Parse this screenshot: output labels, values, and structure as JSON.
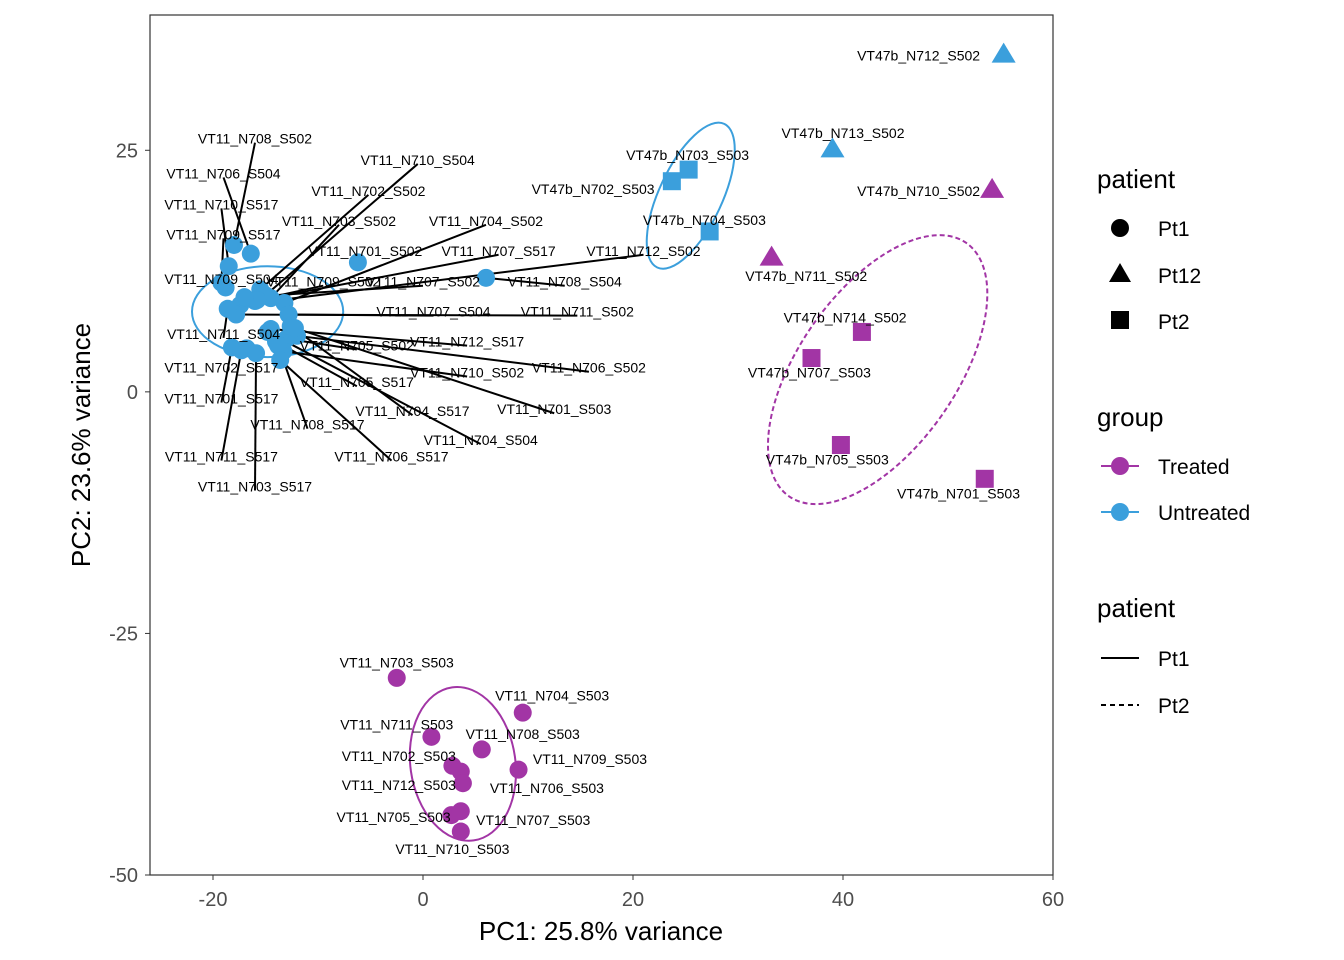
{
  "chart_data": {
    "type": "scatter",
    "xlabel": "PC1: 25.8% variance",
    "ylabel": "PC2: 23.6% variance",
    "xlim": [
      -26,
      60
    ],
    "ylim": [
      -50,
      39
    ],
    "x_ticks": [
      -20,
      0,
      20,
      40,
      60
    ],
    "y_ticks": [
      -50,
      -25,
      0,
      25
    ],
    "grid": false,
    "colors": {
      "Treated": "#a235a5",
      "Untreated": "#3b9fdc"
    },
    "points": [
      {
        "label": "VT11_N708_S502",
        "x": -18.0,
        "y": 15.2,
        "group": "Untreated",
        "patient": "Pt1",
        "lx": -16.0,
        "ly": 26.2
      },
      {
        "label": "VT11_N706_S504",
        "x": -16.4,
        "y": 14.3,
        "group": "Untreated",
        "patient": "Pt1",
        "lx": -19.0,
        "ly": 22.6
      },
      {
        "label": "VT11_N710_S517",
        "x": -18.5,
        "y": 13.0,
        "group": "Untreated",
        "patient": "Pt1",
        "lx": -19.2,
        "ly": 19.4
      },
      {
        "label": "VT11_N709_S517",
        "x": -19.2,
        "y": 11.3,
        "group": "Untreated",
        "patient": "Pt1",
        "lx": -19.0,
        "ly": 16.3
      },
      {
        "label": "VT11_N709_S504",
        "x": -18.8,
        "y": 10.8,
        "group": "Untreated",
        "patient": "Pt1",
        "lx": -19.2,
        "ly": 11.7
      },
      {
        "label": "VT11_N710_S504",
        "x": -15.0,
        "y": 10.0,
        "group": "Untreated",
        "patient": "Pt1",
        "lx": -0.5,
        "ly": 24.0
      },
      {
        "label": "VT11_N702_S502",
        "x": -15.5,
        "y": 10.6,
        "group": "Untreated",
        "patient": "Pt1",
        "lx": -5.2,
        "ly": 20.8
      },
      {
        "label": "VT11_N703_S502",
        "x": -14.5,
        "y": 9.7,
        "group": "Untreated",
        "patient": "Pt1",
        "lx": -8.0,
        "ly": 17.7
      },
      {
        "label": "VT11_N704_S502",
        "x": -13.2,
        "y": 9.2,
        "group": "Untreated",
        "patient": "Pt1",
        "lx": 6.0,
        "ly": 17.7
      },
      {
        "label": "VT11_N701_S502",
        "x": -6.2,
        "y": 13.4,
        "group": "Untreated",
        "patient": "Pt1",
        "lx": -5.5,
        "ly": 14.6
      },
      {
        "label": "VT11_N707_S517",
        "x": -16.0,
        "y": 9.4,
        "group": "Untreated",
        "patient": "Pt1",
        "lx": 7.2,
        "ly": 14.6
      },
      {
        "label": "VT11_N712_S502",
        "x": -17.4,
        "y": 9.0,
        "group": "Untreated",
        "patient": "Pt1",
        "lx": 21.0,
        "ly": 14.6
      },
      {
        "label": "VT11_N709_S502",
        "x": -15.8,
        "y": 9.5,
        "group": "Untreated",
        "patient": "Pt1",
        "lx": -9.5,
        "ly": 11.4
      },
      {
        "label": "VT11_N707_S502",
        "x": -17.0,
        "y": 9.8,
        "group": "Untreated",
        "patient": "Pt1",
        "lx": 0.0,
        "ly": 11.4
      },
      {
        "label": "VT11_N708_S504",
        "x": 6.0,
        "y": 11.8,
        "group": "Untreated",
        "patient": "Pt1",
        "lx": 13.5,
        "ly": 11.4
      },
      {
        "label": "VT11_N707_S504",
        "x": -12.8,
        "y": 8.0,
        "group": "Untreated",
        "patient": "Pt1",
        "lx": 1.0,
        "ly": 8.3
      },
      {
        "label": "VT11_N711_S502",
        "x": -17.8,
        "y": 8.0,
        "group": "Untreated",
        "patient": "Pt1",
        "lx": 14.7,
        "ly": 8.3
      },
      {
        "label": "VT11_N711_S504",
        "x": -18.6,
        "y": 8.6,
        "group": "Untreated",
        "patient": "Pt1",
        "lx": -19.0,
        "ly": 6.0
      },
      {
        "label": "VT11_N712_S517",
        "x": -14.5,
        "y": 6.5,
        "group": "Untreated",
        "patient": "Pt1",
        "lx": 4.2,
        "ly": 5.2
      },
      {
        "label": "VT11_N705_S502",
        "x": -13.0,
        "y": 5.5,
        "group": "Untreated",
        "patient": "Pt1",
        "lx": -6.3,
        "ly": 4.8
      },
      {
        "label": "VT11_N706_S502",
        "x": -12.0,
        "y": 5.8,
        "group": "Untreated",
        "patient": "Pt1",
        "lx": 15.8,
        "ly": 2.5
      },
      {
        "label": "VT11_N702_S517",
        "x": -16.8,
        "y": 4.5,
        "group": "Untreated",
        "patient": "Pt1",
        "lx": -19.2,
        "ly": 2.5
      },
      {
        "label": "VT11_N710_S502",
        "x": -13.3,
        "y": 4.2,
        "group": "Untreated",
        "patient": "Pt1",
        "lx": 4.2,
        "ly": 2.0
      },
      {
        "label": "VT11_N705_S517",
        "x": -14.0,
        "y": 5.2,
        "group": "Untreated",
        "patient": "Pt1",
        "lx": -6.3,
        "ly": 1.0
      },
      {
        "label": "VT11_N701_S517",
        "x": -18.2,
        "y": 4.6,
        "group": "Untreated",
        "patient": "Pt1",
        "lx": -19.2,
        "ly": -0.7
      },
      {
        "label": "VT11_N704_S517",
        "x": -12.6,
        "y": 6.8,
        "group": "Untreated",
        "patient": "Pt1",
        "lx": -1.0,
        "ly": -2.0
      },
      {
        "label": "VT11_N701_S503",
        "x": -12.2,
        "y": 6.6,
        "group": "Untreated",
        "patient": "Pt1",
        "lx": 12.5,
        "ly": -1.8
      },
      {
        "label": "VT11_N708_S517",
        "x": -13.8,
        "y": 4.8,
        "group": "Untreated",
        "patient": "Pt1",
        "lx": -11.0,
        "ly": -3.4
      },
      {
        "label": "VT11_N704_S504",
        "x": -14.8,
        "y": 6.2,
        "group": "Untreated",
        "patient": "Pt1",
        "lx": 5.5,
        "ly": -5.0
      },
      {
        "label": "VT11_N711_S517",
        "x": -17.3,
        "y": 4.3,
        "group": "Untreated",
        "patient": "Pt1",
        "lx": -19.2,
        "ly": -6.7
      },
      {
        "label": "VT11_N706_S517",
        "x": -13.6,
        "y": 3.3,
        "group": "Untreated",
        "patient": "Pt1",
        "lx": -3.0,
        "ly": -6.7
      },
      {
        "label": "VT11_N703_S517",
        "x": -15.9,
        "y": 4.0,
        "group": "Untreated",
        "patient": "Pt1",
        "lx": -16.0,
        "ly": -9.8
      },
      {
        "label": "VT11_N703_S503",
        "x": -2.5,
        "y": -29.6,
        "group": "Treated",
        "patient": "Pt1",
        "lx": -2.5,
        "ly": -28.0
      },
      {
        "label": "VT11_N704_S503",
        "x": 9.5,
        "y": -33.2,
        "group": "Treated",
        "patient": "Pt1",
        "lx": 12.3,
        "ly": -31.4
      },
      {
        "label": "VT11_N711_S503",
        "x": 0.8,
        "y": -35.7,
        "group": "Treated",
        "patient": "Pt1",
        "lx": -2.5,
        "ly": -34.4
      },
      {
        "label": "VT11_N708_S503",
        "x": 5.6,
        "y": -37.0,
        "group": "Treated",
        "patient": "Pt1",
        "lx": 9.5,
        "ly": -35.4
      },
      {
        "label": "VT11_N702_S503",
        "x": 2.8,
        "y": -38.7,
        "group": "Treated",
        "patient": "Pt1",
        "lx": -2.3,
        "ly": -37.7
      },
      {
        "label": "VT11_N709_S503",
        "x": 9.1,
        "y": -39.1,
        "group": "Treated",
        "patient": "Pt1",
        "lx": 15.9,
        "ly": -38.0
      },
      {
        "label": "VT11_N712_S503",
        "x": 3.6,
        "y": -39.3,
        "group": "Treated",
        "patient": "Pt1",
        "lx": -2.3,
        "ly": -40.7
      },
      {
        "label": "VT11_N706_S503",
        "x": 3.8,
        "y": -40.5,
        "group": "Treated",
        "patient": "Pt1",
        "lx": 11.8,
        "ly": -41.0
      },
      {
        "label": "VT11_N705_S503",
        "x": 2.7,
        "y": -43.8,
        "group": "Treated",
        "patient": "Pt1",
        "lx": -2.8,
        "ly": -44.0
      },
      {
        "label": "VT11_N707_S503",
        "x": 3.6,
        "y": -43.4,
        "group": "Treated",
        "patient": "Pt1",
        "lx": 10.5,
        "ly": -44.3
      },
      {
        "label": "VT11_N710_S503",
        "x": 3.6,
        "y": -45.5,
        "group": "Treated",
        "patient": "Pt1",
        "lx": 2.8,
        "ly": -47.3
      },
      {
        "label": "VT47b_N703_S503",
        "x": 25.3,
        "y": 23.0,
        "group": "Untreated",
        "patient": "Pt2",
        "lx": 25.2,
        "ly": 24.5
      },
      {
        "label": "VT47b_N702_S503",
        "x": 23.7,
        "y": 21.8,
        "group": "Untreated",
        "patient": "Pt2",
        "lx": 16.2,
        "ly": 21.0
      },
      {
        "label": "VT47b_N704_S503",
        "x": 27.3,
        "y": 16.6,
        "group": "Untreated",
        "patient": "Pt2",
        "lx": 26.8,
        "ly": 17.8
      },
      {
        "label": "VT47b_N714_S502",
        "x": 41.8,
        "y": 6.2,
        "group": "Treated",
        "patient": "Pt2",
        "lx": 40.2,
        "ly": 7.7
      },
      {
        "label": "VT47b_N707_S503",
        "x": 37.0,
        "y": 3.5,
        "group": "Treated",
        "patient": "Pt2",
        "lx": 36.8,
        "ly": 2.0
      },
      {
        "label": "VT47b_N705_S503",
        "x": 39.8,
        "y": -5.5,
        "group": "Treated",
        "patient": "Pt2",
        "lx": 38.5,
        "ly": -7.0
      },
      {
        "label": "VT47b_N701_S503",
        "x": 53.5,
        "y": -9.0,
        "group": "Treated",
        "patient": "Pt2",
        "lx": 51.0,
        "ly": -10.5
      },
      {
        "label": "VT47b_N712_S502",
        "x": 55.3,
        "y": 35.0,
        "group": "Untreated",
        "patient": "Pt12",
        "lx": 47.2,
        "ly": 34.8
      },
      {
        "label": "VT47b_N713_S502",
        "x": 39.0,
        "y": 25.2,
        "group": "Untreated",
        "patient": "Pt12",
        "lx": 40.0,
        "ly": 26.8
      },
      {
        "label": "VT47b_N710_S502",
        "x": 54.2,
        "y": 21.0,
        "group": "Treated",
        "patient": "Pt12",
        "lx": 47.2,
        "ly": 20.8
      },
      {
        "label": "VT47b_N711_S502",
        "x": 33.2,
        "y": 14.0,
        "group": "Treated",
        "patient": "Pt12",
        "lx": 36.5,
        "ly": 12.0
      }
    ],
    "ellipses": [
      {
        "group": "Untreated",
        "patient": "Pt1",
        "cx": -14.8,
        "cy": 8.3,
        "rx": 7.2,
        "ry": 4.7,
        "angle": 0
      },
      {
        "group": "Treated",
        "patient": "Pt1",
        "cx": 3.8,
        "cy": -38.5,
        "rx": 5.0,
        "ry": 8.0,
        "angle": -8
      },
      {
        "group": "Untreated",
        "patient": "Pt2",
        "cx": 25.5,
        "cy": 20.3,
        "rx": 3.0,
        "ry": 8.2,
        "angle": 25
      },
      {
        "group": "Treated",
        "patient": "Pt2",
        "cx": 43.3,
        "cy": 2.3,
        "rx": 7.5,
        "ry": 16.0,
        "angle": 35
      }
    ],
    "legends": {
      "shape": {
        "title": "patient",
        "items": [
          {
            "label": "Pt1",
            "shape": "circle"
          },
          {
            "label": "Pt12",
            "shape": "triangle"
          },
          {
            "label": "Pt2",
            "shape": "square"
          }
        ]
      },
      "color": {
        "title": "group",
        "items": [
          {
            "label": "Treated",
            "color": "#a235a5"
          },
          {
            "label": "Untreated",
            "color": "#3b9fdc"
          }
        ]
      },
      "linetype": {
        "title": "patient",
        "items": [
          {
            "label": "Pt1",
            "dash": "solid"
          },
          {
            "label": "Pt2",
            "dash": "dashed"
          }
        ]
      },
      "placement": "right"
    }
  }
}
